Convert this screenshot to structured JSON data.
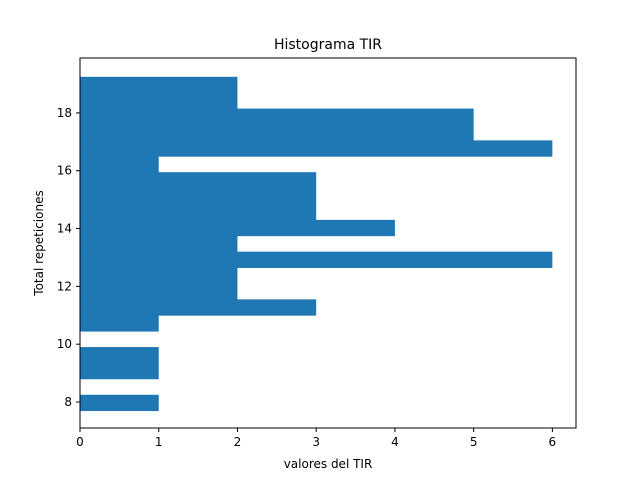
{
  "chart_data": {
    "type": "bar",
    "orientation": "horizontal",
    "title": "Histograma TIR",
    "xlabel": "valores del TIR",
    "ylabel": "Total repeticiones",
    "xlim": [
      0,
      6.3
    ],
    "ylim": [
      7.1,
      19.9
    ],
    "xticks": [
      0,
      1,
      2,
      3,
      4,
      5,
      6
    ],
    "yticks": [
      8,
      10,
      12,
      14,
      16,
      18
    ],
    "grid": false,
    "bar_color": "#1f77b4",
    "bins": [
      {
        "y_start": 7.7,
        "y_end": 8.25,
        "value": 1
      },
      {
        "y_start": 8.25,
        "y_end": 8.8,
        "value": 0
      },
      {
        "y_start": 8.8,
        "y_end": 9.9,
        "value": 1
      },
      {
        "y_start": 9.9,
        "y_end": 10.45,
        "value": 0
      },
      {
        "y_start": 10.45,
        "y_end": 11.0,
        "value": 1
      },
      {
        "y_start": 11.0,
        "y_end": 11.55,
        "value": 3
      },
      {
        "y_start": 11.55,
        "y_end": 12.65,
        "value": 2
      },
      {
        "y_start": 12.65,
        "y_end": 13.2,
        "value": 6
      },
      {
        "y_start": 13.2,
        "y_end": 13.75,
        "value": 2
      },
      {
        "y_start": 13.75,
        "y_end": 14.3,
        "value": 4
      },
      {
        "y_start": 14.3,
        "y_end": 15.95,
        "value": 3
      },
      {
        "y_start": 15.95,
        "y_end": 16.5,
        "value": 1
      },
      {
        "y_start": 16.5,
        "y_end": 17.05,
        "value": 6
      },
      {
        "y_start": 17.05,
        "y_end": 18.15,
        "value": 5
      },
      {
        "y_start": 18.15,
        "y_end": 19.25,
        "value": 2
      }
    ]
  }
}
